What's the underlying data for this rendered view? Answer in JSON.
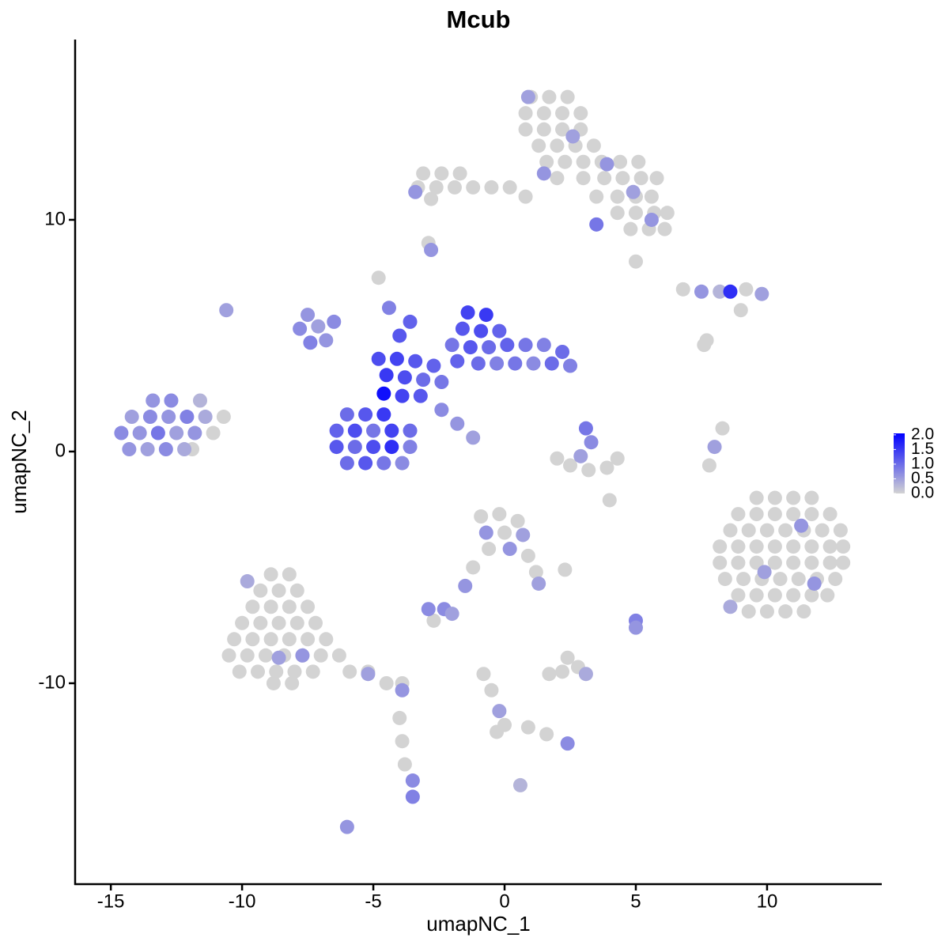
{
  "chart_data": {
    "type": "scatter",
    "title": "Mcub",
    "x_label": "umapNC_1",
    "y_label": "umapNC_2",
    "xlim": [
      -16.36,
      14.37
    ],
    "ylim": [
      -18.67,
      17.78
    ],
    "xticks": [
      -15,
      -10,
      -5,
      0,
      5,
      10
    ],
    "yticks": [
      -10,
      0,
      10
    ],
    "color_low": "#d3d3d3",
    "color_high": "#0000ff",
    "colorlim": [
      0,
      2.05
    ],
    "colorticks": [
      {
        "value": 0,
        "label": "0.0"
      },
      {
        "value": 0.5,
        "label": "0.5"
      },
      {
        "value": 1,
        "label": "1.0"
      },
      {
        "value": 1.5,
        "label": "1.5"
      },
      {
        "value": 2,
        "label": "2.0"
      }
    ],
    "x": [
      9.6,
      10.3,
      11.0,
      11.7,
      8.9,
      9.6,
      10.3,
      11.0,
      11.7,
      12.4,
      8.6,
      9.3,
      10.0,
      10.7,
      11.4,
      12.1,
      12.8,
      8.2,
      8.9,
      9.6,
      10.3,
      11.0,
      11.7,
      12.4,
      12.9,
      8.2,
      8.9,
      9.6,
      10.3,
      11.0,
      11.7,
      12.4,
      12.9,
      8.4,
      9.1,
      9.8,
      10.5,
      11.2,
      11.9,
      12.6,
      8.9,
      9.6,
      10.3,
      11.0,
      11.7,
      12.3,
      9.3,
      10.0,
      10.7,
      11.4,
      11.3,
      9.9,
      11.8,
      8.6,
      -8.9,
      -8.2,
      -9.3,
      -8.6,
      -7.9,
      -9.6,
      -8.9,
      -8.2,
      -7.5,
      -10.0,
      -9.3,
      -8.6,
      -7.9,
      -7.2,
      -10.3,
      -9.6,
      -8.9,
      -8.2,
      -7.5,
      -6.8,
      -10.5,
      -9.8,
      -9.1,
      -8.4,
      -7.7,
      -7.0,
      -6.3,
      -10.1,
      -9.4,
      -8.7,
      -8.0,
      -7.3,
      -5.9,
      -5.2,
      -8.8,
      -8.1,
      -4.5,
      -3.9,
      -4.0,
      -3.9,
      -3.8,
      -3.5,
      -3.5,
      -8.6,
      -7.7,
      -5.2,
      -3.9,
      -9.8,
      1.0,
      1.7,
      2.4,
      0.8,
      1.5,
      2.2,
      2.9,
      0.8,
      1.5,
      2.2,
      2.9,
      1.3,
      2.0,
      2.7,
      3.4,
      1.6,
      2.3,
      3.0,
      3.7,
      4.4,
      5.1,
      2.0,
      3.0,
      3.8,
      4.5,
      5.2,
      5.8,
      0.8,
      3.5,
      4.3,
      5.0,
      5.6,
      4.3,
      5.0,
      5.7,
      6.2,
      4.8,
      5.5,
      6.1,
      -3.1,
      -2.4,
      -1.7,
      -3.3,
      -2.6,
      -1.9,
      -1.2,
      -0.5,
      0.2,
      -2.8,
      1.5,
      3.9,
      4.9,
      5.6,
      0.9,
      2.6,
      -3.4,
      3.5,
      -2.8,
      -13.4,
      -12.7,
      -11.6,
      -14.2,
      -13.5,
      -12.8,
      -12.1,
      -11.4,
      -10.7,
      -14.6,
      -13.9,
      -13.2,
      -12.5,
      -11.8,
      -11.1,
      -14.3,
      -13.6,
      -12.9,
      -12.2,
      -11.9,
      -7.5,
      -7.8,
      -7.1,
      -6.8,
      -7.4,
      -6.5,
      -4.8,
      -4.1,
      -3.4,
      -2.7,
      -4.5,
      -3.8,
      -3.1,
      -2.4,
      -4.6,
      -3.9,
      -3.2,
      -4.8,
      -4.4,
      -4.0,
      -3.6,
      -6.0,
      -5.3,
      -4.6,
      -6.4,
      -5.7,
      -5.0,
      -4.3,
      -3.6,
      -6.4,
      -5.7,
      -5.0,
      -4.3,
      -3.6,
      -6.0,
      -5.3,
      -4.6,
      -3.9,
      -1.4,
      -0.7,
      -1.6,
      -0.9,
      -0.2,
      -2.0,
      -1.3,
      -0.6,
      0.1,
      0.8,
      1.5,
      2.2,
      -1.0,
      -0.3,
      0.4,
      1.1,
      1.8,
      2.5,
      -1.8,
      -2.4,
      -1.8,
      -1.2,
      3.1,
      3.3,
      2.9,
      2.5,
      3.2,
      3.9,
      4.3,
      2.0,
      6.8,
      7.5,
      8.2,
      8.6,
      9.2,
      9.8,
      9.0,
      7.7,
      8.3,
      8.0,
      7.8,
      -0.9,
      -0.2,
      0.5,
      -0.7,
      0.0,
      0.7,
      -0.6,
      0.2,
      0.9,
      1.2,
      1.3,
      -1.2,
      -1.5,
      -2.3,
      -2.9,
      -2.0,
      -2.7,
      5.0,
      5.0,
      2.2,
      2.8,
      1.7,
      2.4,
      3.1,
      -0.8,
      -0.5,
      -0.2,
      0.0,
      0.9,
      1.6,
      2.4,
      -0.3,
      0.6,
      -6.0,
      -10.6,
      -2.9,
      5.0,
      7.6,
      4.0,
      2.3
    ],
    "y": [
      -2.0,
      -2.0,
      -2.0,
      -2.0,
      -2.7,
      -2.7,
      -2.7,
      -2.7,
      -2.7,
      -2.7,
      -3.4,
      -3.4,
      -3.4,
      -3.4,
      -3.4,
      -3.4,
      -3.4,
      -4.1,
      -4.1,
      -4.1,
      -4.1,
      -4.1,
      -4.1,
      -4.1,
      -4.1,
      -4.8,
      -4.8,
      -4.8,
      -4.8,
      -4.8,
      -4.8,
      -4.8,
      -4.8,
      -5.5,
      -5.5,
      -5.5,
      -5.5,
      -5.5,
      -5.5,
      -5.5,
      -6.2,
      -6.2,
      -6.2,
      -6.2,
      -6.2,
      -6.2,
      -6.9,
      -6.9,
      -6.9,
      -6.9,
      -3.2,
      -5.2,
      -5.7,
      -6.7,
      -5.3,
      -5.3,
      -6.0,
      -6.0,
      -6.0,
      -6.7,
      -6.7,
      -6.7,
      -6.7,
      -7.4,
      -7.4,
      -7.4,
      -7.4,
      -7.4,
      -8.1,
      -8.1,
      -8.1,
      -8.1,
      -8.1,
      -8.1,
      -8.8,
      -8.8,
      -8.8,
      -8.8,
      -8.8,
      -8.8,
      -8.8,
      -9.5,
      -9.5,
      -9.5,
      -9.5,
      -9.5,
      -9.5,
      -9.5,
      -10.0,
      -10.0,
      -10.0,
      -10.0,
      -11.5,
      -12.5,
      -13.5,
      -14.2,
      -14.9,
      -8.9,
      -8.8,
      -9.6,
      -10.3,
      -5.6,
      15.3,
      15.3,
      15.3,
      14.6,
      14.6,
      14.6,
      14.6,
      13.9,
      13.9,
      13.9,
      13.9,
      13.2,
      13.2,
      13.2,
      13.2,
      12.5,
      12.5,
      12.5,
      12.5,
      12.5,
      12.5,
      11.8,
      11.8,
      11.8,
      11.8,
      11.8,
      11.8,
      11.0,
      11.0,
      11.0,
      11.0,
      11.0,
      10.3,
      10.3,
      10.3,
      10.3,
      9.6,
      9.6,
      9.6,
      12.0,
      12.0,
      12.0,
      11.4,
      11.4,
      11.4,
      11.4,
      11.4,
      11.4,
      10.9,
      12.0,
      12.4,
      11.2,
      10.0,
      15.3,
      13.6,
      11.2,
      9.8,
      8.7,
      2.2,
      2.2,
      2.2,
      1.5,
      1.5,
      1.5,
      1.5,
      1.5,
      1.5,
      0.8,
      0.8,
      0.8,
      0.8,
      0.8,
      0.8,
      0.1,
      0.1,
      0.1,
      0.1,
      0.1,
      5.9,
      5.3,
      5.4,
      4.8,
      4.7,
      5.6,
      4.0,
      4.0,
      3.9,
      3.7,
      3.3,
      3.2,
      3.1,
      3.0,
      2.5,
      2.4,
      2.4,
      7.5,
      6.2,
      5.0,
      5.6,
      1.6,
      1.6,
      1.6,
      0.9,
      0.9,
      0.9,
      0.9,
      0.9,
      0.2,
      0.2,
      0.2,
      0.2,
      0.2,
      -0.5,
      -0.5,
      -0.5,
      -0.5,
      6.0,
      5.9,
      5.3,
      5.2,
      5.2,
      4.6,
      4.5,
      4.5,
      4.6,
      4.6,
      4.6,
      4.3,
      3.8,
      3.8,
      3.8,
      3.8,
      3.8,
      3.7,
      3.9,
      1.8,
      1.2,
      0.6,
      1.0,
      0.4,
      -0.2,
      -0.6,
      -0.8,
      -0.7,
      -0.3,
      -0.3,
      7.0,
      6.9,
      6.9,
      6.9,
      7.0,
      6.8,
      6.1,
      4.8,
      1.0,
      0.2,
      -0.6,
      -2.8,
      -2.7,
      -3.0,
      -3.5,
      -3.5,
      -3.6,
      -4.2,
      -4.2,
      -4.5,
      -5.2,
      -5.7,
      -5.0,
      -5.8,
      -6.8,
      -6.8,
      -7.0,
      -7.3,
      -7.3,
      -7.6,
      -9.5,
      -9.3,
      -9.6,
      -8.9,
      -9.6,
      -9.6,
      -10.3,
      -11.2,
      -11.8,
      -11.9,
      -12.2,
      -12.6,
      -12.1,
      -14.4,
      -16.2,
      6.1,
      9.0,
      8.2,
      4.6,
      -2.1,
      -5.1
    ],
    "values": [
      0,
      0,
      0,
      0,
      0,
      0,
      0,
      0,
      0,
      0,
      0,
      0,
      0,
      0,
      0,
      0,
      0,
      0,
      0,
      0,
      0,
      0,
      0,
      0,
      0,
      0,
      0,
      0,
      0,
      0,
      0,
      0,
      0,
      0,
      0,
      0,
      0,
      0,
      0,
      0,
      0,
      0,
      0,
      0,
      0,
      0,
      0,
      0,
      0,
      0,
      0.6,
      0.5,
      0.6,
      0.4,
      0,
      0,
      0,
      0,
      0,
      0,
      0,
      0,
      0,
      0,
      0,
      0,
      0,
      0,
      0,
      0,
      0,
      0,
      0,
      0,
      0,
      0,
      0,
      0,
      0,
      0,
      0,
      0,
      0,
      0,
      0,
      0,
      0,
      0,
      0,
      0,
      0,
      0,
      0,
      0,
      0,
      0.7,
      0.8,
      0.5,
      0.6,
      0.5,
      0.6,
      0.4,
      0,
      0,
      0,
      0,
      0,
      0,
      0,
      0,
      0,
      0,
      0,
      0,
      0,
      0,
      0,
      0,
      0,
      0,
      0,
      0,
      0,
      0,
      0,
      0,
      0,
      0,
      0,
      0,
      0,
      0,
      0,
      0,
      0,
      0,
      0,
      0,
      0,
      0,
      0,
      0,
      0,
      0,
      0,
      0,
      0,
      0,
      0,
      0,
      0,
      0.6,
      0.6,
      0.5,
      0.6,
      0.5,
      0.5,
      0.6,
      0.9,
      0.6,
      0.6,
      0.7,
      0.3,
      0.5,
      0.7,
      0.6,
      0.8,
      0.4,
      0,
      0.7,
      0.6,
      0.9,
      0.5,
      0.6,
      0,
      0.6,
      0.5,
      0.7,
      0.4,
      0,
      0.6,
      0.7,
      0.5,
      0.6,
      0.8,
      0.7,
      1.3,
      1.4,
      1.2,
      1.1,
      1.5,
      1.3,
      1.0,
      0.9,
      1.9,
      1.4,
      1.2,
      0,
      0.8,
      1.2,
      1.1,
      1.0,
      1.2,
      1.5,
      1.1,
      1.3,
      0.9,
      1.4,
      1.0,
      1.2,
      1.0,
      1.3,
      1.6,
      0.8,
      1.0,
      1.2,
      0.9,
      0.7,
      1.4,
      1.5,
      1.2,
      1.3,
      1.1,
      0.9,
      1.2,
      1.0,
      1.1,
      0.9,
      0.8,
      1.0,
      1.0,
      0.8,
      0.9,
      0.7,
      1.0,
      0.8,
      1.1,
      0.7,
      0.6,
      0.5,
      0.9,
      0.7,
      0.5,
      0,
      0,
      0,
      0,
      0,
      0,
      0.6,
      0.3,
      1.6,
      0,
      0.5,
      0,
      0,
      0,
      0.5,
      0,
      0,
      0,
      0,
      0.6,
      0,
      0.5,
      0,
      0.6,
      0,
      0,
      0.5,
      0,
      0.6,
      0.7,
      0.7,
      0.5,
      0,
      0.8,
      0.6,
      0,
      0,
      0,
      0,
      0.4,
      0,
      0,
      0.5,
      0,
      0,
      0,
      0.7,
      0,
      0.3,
      0.6,
      0.5,
      0,
      0,
      0,
      0,
      0
    ]
  }
}
